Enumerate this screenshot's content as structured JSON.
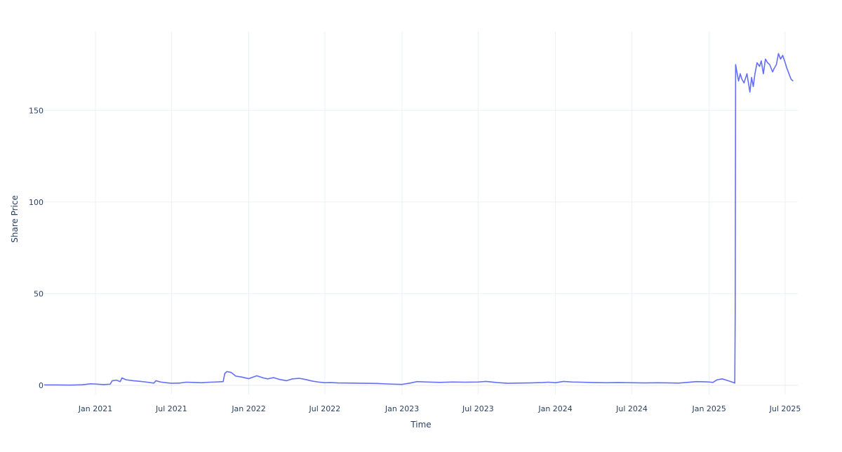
{
  "chart_data": {
    "type": "line",
    "title": "",
    "xlabel": "Time",
    "ylabel": "Share Price",
    "xlim": [
      "2020-09-01",
      "2025-07-31"
    ],
    "ylim": [
      -5,
      193
    ],
    "grid": true,
    "legend": "none",
    "line_color": "#636efa",
    "x_ticks": [
      {
        "date": "2021-01-01",
        "label": "Jan 2021"
      },
      {
        "date": "2021-07-01",
        "label": "Jul 2021"
      },
      {
        "date": "2022-01-01",
        "label": "Jan 2022"
      },
      {
        "date": "2022-07-01",
        "label": "Jul 2022"
      },
      {
        "date": "2023-01-01",
        "label": "Jan 2023"
      },
      {
        "date": "2023-07-01",
        "label": "Jul 2023"
      },
      {
        "date": "2024-01-01",
        "label": "Jan 2024"
      },
      {
        "date": "2024-07-01",
        "label": "Jul 2024"
      },
      {
        "date": "2025-01-01",
        "label": "Jan 2025"
      },
      {
        "date": "2025-07-01",
        "label": "Jul 2025"
      }
    ],
    "y_ticks": [
      {
        "value": 0,
        "label": "0"
      },
      {
        "value": 50,
        "label": "50"
      },
      {
        "value": 100,
        "label": "100"
      },
      {
        "value": 150,
        "label": "150"
      }
    ],
    "series": [
      {
        "x": [
          "2020-09-01",
          "2020-10-01",
          "2020-11-01",
          "2020-12-01",
          "2020-12-20",
          "2021-01-01",
          "2021-01-20",
          "2021-02-05",
          "2021-02-10",
          "2021-02-20",
          "2021-03-01",
          "2021-03-05",
          "2021-03-15",
          "2021-04-01",
          "2021-04-15",
          "2021-05-01",
          "2021-05-20",
          "2021-05-25",
          "2021-06-05",
          "2021-06-15",
          "2021-07-01",
          "2021-07-20",
          "2021-08-05",
          "2021-08-20",
          "2021-09-10",
          "2021-10-01",
          "2021-10-15",
          "2021-11-01",
          "2021-11-05",
          "2021-11-10",
          "2021-11-20",
          "2021-12-01",
          "2021-12-15",
          "2022-01-01",
          "2022-01-20",
          "2022-02-05",
          "2022-02-15",
          "2022-03-01",
          "2022-03-15",
          "2022-04-01",
          "2022-04-15",
          "2022-05-01",
          "2022-05-15",
          "2022-06-01",
          "2022-06-15",
          "2022-07-01",
          "2022-07-15",
          "2022-08-01",
          "2022-09-01",
          "2022-10-01",
          "2022-11-01",
          "2022-12-01",
          "2022-12-15",
          "2023-01-01",
          "2023-01-20",
          "2023-02-05",
          "2023-03-01",
          "2023-04-01",
          "2023-05-01",
          "2023-06-01",
          "2023-07-01",
          "2023-07-20",
          "2023-08-15",
          "2023-09-10",
          "2023-10-01",
          "2023-11-01",
          "2023-12-01",
          "2023-12-15",
          "2024-01-01",
          "2024-01-20",
          "2024-02-10",
          "2024-03-01",
          "2024-04-01",
          "2024-05-01",
          "2024-06-01",
          "2024-07-01",
          "2024-08-01",
          "2024-09-01",
          "2024-10-01",
          "2024-10-20",
          "2024-11-10",
          "2024-12-01",
          "2024-12-20",
          "2025-01-01",
          "2025-01-10",
          "2025-01-20",
          "2025-02-01",
          "2025-02-15",
          "2025-02-28",
          "2025-03-03",
          "2025-03-04",
          "2025-03-05",
          "2025-03-08",
          "2025-03-12",
          "2025-03-16",
          "2025-03-20",
          "2025-03-25",
          "2025-04-01",
          "2025-04-08",
          "2025-04-12",
          "2025-04-16",
          "2025-04-20",
          "2025-04-25",
          "2025-05-01",
          "2025-05-05",
          "2025-05-10",
          "2025-05-15",
          "2025-05-20",
          "2025-05-25",
          "2025-06-01",
          "2025-06-05",
          "2025-06-10",
          "2025-06-15",
          "2025-06-20",
          "2025-06-25",
          "2025-07-01",
          "2025-07-05",
          "2025-07-10",
          "2025-07-15",
          "2025-07-20"
        ],
        "values": [
          0.2,
          0.2,
          0.1,
          0.3,
          0.8,
          0.7,
          0.4,
          0.6,
          2.5,
          2.8,
          2.0,
          4.0,
          3.0,
          2.5,
          2.2,
          1.8,
          1.2,
          2.5,
          1.8,
          1.5,
          1.1,
          1.2,
          1.7,
          1.6,
          1.4,
          1.7,
          1.8,
          2.0,
          6.5,
          7.5,
          7.0,
          5.0,
          4.5,
          3.6,
          5.2,
          4.0,
          3.5,
          4.2,
          3.2,
          2.5,
          3.5,
          3.8,
          3.2,
          2.3,
          1.8,
          1.4,
          1.5,
          1.3,
          1.2,
          1.1,
          1.0,
          0.7,
          0.6,
          0.5,
          1.2,
          2.0,
          1.8,
          1.6,
          1.8,
          1.7,
          1.8,
          2.1,
          1.5,
          1.1,
          1.2,
          1.3,
          1.5,
          1.7,
          1.4,
          2.1,
          1.8,
          1.7,
          1.5,
          1.4,
          1.5,
          1.4,
          1.3,
          1.4,
          1.3,
          1.2,
          1.6,
          2.0,
          1.9,
          1.8,
          1.6,
          3.0,
          3.5,
          2.5,
          1.5,
          1.2,
          40,
          175,
          171,
          166,
          170,
          167,
          165,
          170,
          160,
          168,
          163,
          170,
          176,
          174,
          177,
          170,
          178,
          176,
          175,
          171,
          173,
          175,
          181,
          178,
          180,
          176,
          173,
          170,
          167,
          166
        ]
      }
    ]
  }
}
